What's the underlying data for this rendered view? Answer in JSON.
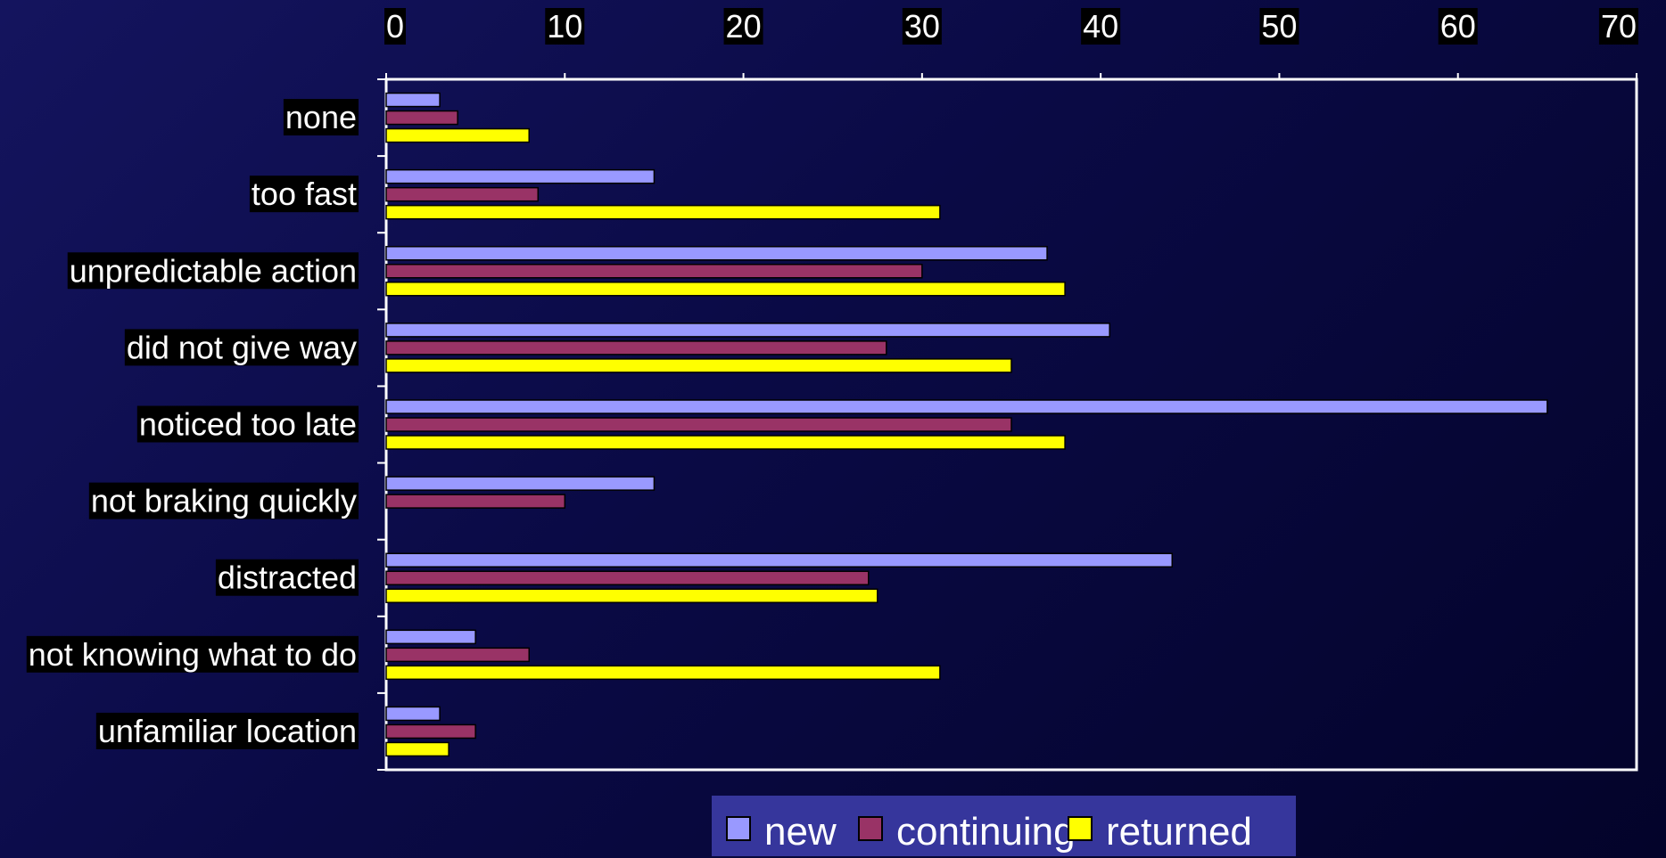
{
  "chart_data": {
    "type": "bar",
    "orientation": "horizontal",
    "categories": [
      "none",
      "too fast",
      "unpredictable action",
      "did not give way",
      "noticed too late",
      "not braking quickly",
      "distracted",
      "not knowing what to do",
      "unfamiliar location"
    ],
    "series": [
      {
        "name": "new",
        "color": "#9999ff",
        "values": [
          3,
          15,
          37,
          40.5,
          65,
          15,
          44,
          5,
          3
        ]
      },
      {
        "name": "continuing",
        "color": "#993366",
        "values": [
          4,
          8.5,
          30,
          28,
          35,
          10,
          27,
          8,
          5
        ]
      },
      {
        "name": "returned",
        "color": "#ffff00",
        "values": [
          8,
          31,
          38,
          35,
          38,
          0,
          27.5,
          31,
          3.5
        ]
      }
    ],
    "xlim": [
      0,
      70
    ],
    "xticks": [
      "0",
      "10",
      "20",
      "30",
      "40",
      "50",
      "60",
      "70"
    ],
    "x_axis_position": "top",
    "gridlines": false,
    "legend_position": "bottom"
  }
}
